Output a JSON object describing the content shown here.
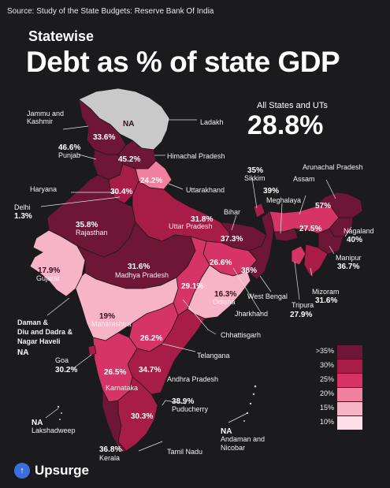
{
  "header": {
    "source": "Source: Study of the State Budgets: Reserve Bank Of India",
    "subtitle": "Statewise",
    "title": "Debt as % of state GDP"
  },
  "summary": {
    "label": "All States and UTs",
    "value": "28.8%"
  },
  "states": {
    "jk": {
      "name": "Jammu and Kashmir",
      "value": "33.6%"
    },
    "ladakh": {
      "name": "Ladakh",
      "value": "NA"
    },
    "punjab": {
      "name": "Punjab",
      "value": "46.6%"
    },
    "himachal": {
      "name": "Himachal Pradesh",
      "value": "45.2%"
    },
    "uttarakhand": {
      "name": "Uttarakhand",
      "value": "24.2%"
    },
    "haryana": {
      "name": "Haryana",
      "value": "30.4%"
    },
    "delhi": {
      "name": "Delhi",
      "value": "1.3%"
    },
    "rajasthan": {
      "name": "Rajasthan",
      "value": "35.8%"
    },
    "up": {
      "name": "Uttar Pradesh",
      "value": "31.8%"
    },
    "bihar": {
      "name": "Bihar",
      "value": "37.3%"
    },
    "sikkim": {
      "name": "Sikkim",
      "value": "35%"
    },
    "meghalaya": {
      "name": "Meghalaya",
      "value": "39%"
    },
    "assam": {
      "name": "Assam",
      "value": "27.5%"
    },
    "arunachal": {
      "name": "Arunachal Pradesh",
      "value": "57%"
    },
    "nagaland": {
      "name": "Nagaland",
      "value": "40%"
    },
    "manipur": {
      "name": "Manipur",
      "value": "36.7%"
    },
    "mizoram": {
      "name": "Mizoram",
      "value": "31.6%"
    },
    "tripura": {
      "name": "Tripura",
      "value": "27.9%"
    },
    "gujarat": {
      "name": "Gujarat",
      "value": "17.9%"
    },
    "mp": {
      "name": "Madhya Pradesh",
      "value": "31.6%"
    },
    "wb": {
      "name": "West Bengal",
      "value": "38%"
    },
    "jharkhand": {
      "name": "Jharkhand",
      "value": "26.6%"
    },
    "odisha": {
      "name": "Odisha",
      "value": "16.3%"
    },
    "chhattisgarh": {
      "name": "Chhattisgarh",
      "value": "29.1%"
    },
    "maharashtra": {
      "name": "Maharashtra",
      "value": "19%"
    },
    "telangana": {
      "name": "Telangana",
      "value": "26.2%"
    },
    "ap": {
      "name": "Andhra Pradesh",
      "value": "34.7%"
    },
    "karnataka": {
      "name": "Karnataka",
      "value": "26.5%"
    },
    "goa": {
      "name": "Goa",
      "value": "30.2%"
    },
    "puducherry": {
      "name": "Puducherry",
      "value": "38.9%"
    },
    "tn": {
      "name": "Tamil Nadu",
      "value": "30.3%"
    },
    "kerala": {
      "name": "Kerala",
      "value": "36.8%"
    },
    "daman": {
      "name": "Daman & Diu and Dadra & Nagar Haveli",
      "name_l1": "Daman &",
      "name_l2": "Diu and Dadra &",
      "name_l3": "Nagar Haveli",
      "value": "NA"
    },
    "lakshadweep": {
      "name": "Lakshadweep",
      "value": "NA"
    },
    "andaman": {
      "name": "Andaman and Nicobar",
      "name_l1": "Andaman and",
      "name_l2": "Nicobar",
      "value": "NA"
    }
  },
  "legend": [
    {
      "label": ">35%",
      "color": "#6e1636"
    },
    {
      "label": "30%",
      "color": "#a81d48"
    },
    {
      "label": "25%",
      "color": "#d63366"
    },
    {
      "label": "20%",
      "color": "#f07fa0"
    },
    {
      "label": "15%",
      "color": "#f7b4c6"
    },
    {
      "label": "10%",
      "color": "#fbe0e7"
    }
  ],
  "colors": {
    "na": "#c9c9c9",
    "c35": "#6e1636",
    "c30": "#a81d48",
    "c25": "#d63366",
    "c20": "#f07fa0",
    "c15": "#f7b4c6",
    "c10": "#fbe0e7"
  },
  "brand": {
    "name": "Upsurge",
    "icon": "upsurge-logo-icon",
    "color": "#3b6fe0"
  }
}
